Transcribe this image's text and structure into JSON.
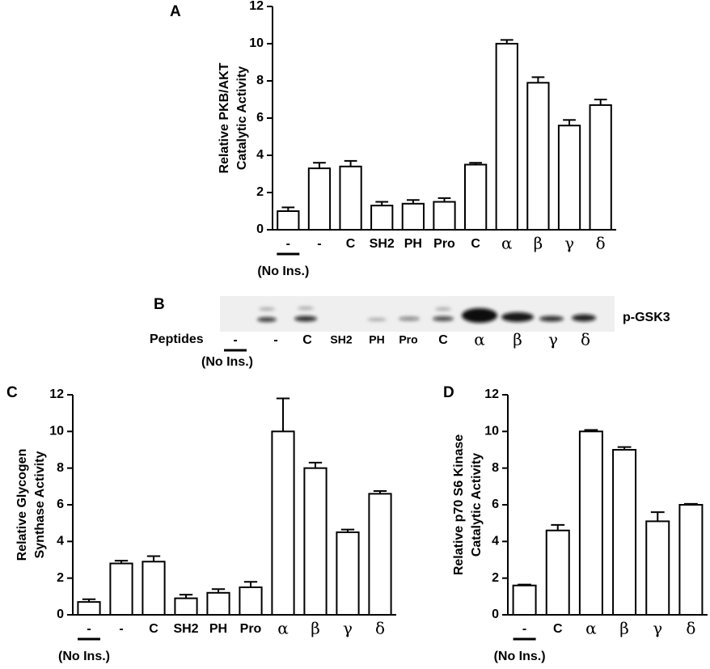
{
  "chart_data": [
    {
      "type": "bar",
      "panel": "A",
      "ylabel": [
        "Relative PKB/AKT",
        "Catalytic Activity"
      ],
      "categories": [
        "-",
        "-",
        "C",
        "SH2",
        "PH",
        "Pro",
        "C",
        "α",
        "β",
        "γ",
        "δ"
      ],
      "values": [
        1.0,
        3.3,
        3.4,
        1.3,
        1.4,
        1.5,
        3.5,
        10.0,
        7.9,
        5.6,
        6.7
      ],
      "errors": [
        0.2,
        0.3,
        0.3,
        0.2,
        0.2,
        0.2,
        0.1,
        0.2,
        0.3,
        0.3,
        0.3
      ],
      "annotation": "(No Ins.)",
      "color": "#ffffff",
      "ylim": [
        0,
        12
      ],
      "yticks": [
        0,
        2,
        4,
        6,
        8,
        10,
        12
      ]
    },
    {
      "type": "bar",
      "panel": "C",
      "ylabel": [
        "Relative Glycogen",
        "Synthase Activity"
      ],
      "categories": [
        "-",
        "-",
        "C",
        "SH2",
        "PH",
        "Pro",
        "α",
        "β",
        "γ",
        "δ"
      ],
      "values": [
        0.7,
        2.8,
        2.9,
        0.9,
        1.2,
        1.5,
        10.0,
        8.0,
        4.5,
        6.6
      ],
      "errors": [
        0.15,
        0.15,
        0.3,
        0.2,
        0.2,
        0.3,
        1.8,
        0.3,
        0.15,
        0.15
      ],
      "annotation": "(No Ins.)",
      "color": "#ffffff",
      "ylim": [
        0,
        12
      ],
      "yticks": [
        0,
        2,
        4,
        6,
        8,
        10,
        12
      ]
    },
    {
      "type": "bar",
      "panel": "D",
      "ylabel": [
        "Relative p70 S6 Kinase",
        "Catalytic Activity"
      ],
      "categories": [
        "-",
        "C",
        "α",
        "β",
        "γ",
        "δ"
      ],
      "values": [
        1.6,
        4.6,
        10.0,
        9.0,
        5.1,
        6.0
      ],
      "errors": [
        0.05,
        0.3,
        0.08,
        0.15,
        0.5,
        0.05
      ],
      "annotation": "(No Ins.)",
      "color": "#ffffff",
      "ylim": [
        0,
        12
      ],
      "yticks": [
        0,
        2,
        4,
        6,
        8,
        10,
        12
      ]
    }
  ],
  "blot": {
    "panel": "B",
    "row_label": "Peptides",
    "band_label": "p-GSK3",
    "annotation": "(No Ins.)",
    "lanes": [
      "-",
      "-",
      "C",
      "SH2",
      "PH",
      "Pro",
      "C",
      "α",
      "β",
      "γ",
      "δ"
    ]
  }
}
